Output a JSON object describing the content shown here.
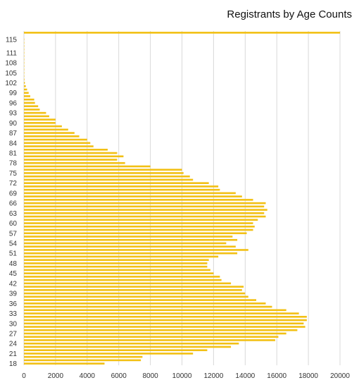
{
  "chart_data": {
    "type": "bar",
    "orientation": "horizontal",
    "title": "Registrants by Age Counts",
    "xlabel": "",
    "ylabel": "",
    "xlim": [
      0,
      20000
    ],
    "x_ticks": [
      0,
      2000,
      4000,
      6000,
      8000,
      10000,
      12000,
      14000,
      16000,
      18000,
      20000
    ],
    "y_tick_labels": [
      "115",
      "111",
      "108",
      "105",
      "102",
      "99",
      "96",
      "93",
      "90",
      "87",
      "84",
      "81",
      "78",
      "75",
      "72",
      "69",
      "66",
      "63",
      "60",
      "57",
      "54",
      "51",
      "48",
      "45",
      "42",
      "39",
      "36",
      "33",
      "30",
      "27",
      "24",
      "21",
      "18"
    ],
    "grid": "vertical",
    "legend": "none",
    "bar_color": "#F2C014",
    "categories": [
      "18",
      "19",
      "20",
      "21",
      "22",
      "23",
      "24",
      "25",
      "26",
      "27",
      "28",
      "29",
      "30",
      "31",
      "32",
      "33",
      "34",
      "35",
      "36",
      "37",
      "38",
      "39",
      "40",
      "41",
      "42",
      "43",
      "44",
      "45",
      "46",
      "47",
      "48",
      "49",
      "50",
      "51",
      "52",
      "53",
      "54",
      "55",
      "56",
      "57",
      "58",
      "59",
      "60",
      "61",
      "62",
      "63",
      "64",
      "65",
      "66",
      "67",
      "68",
      "69",
      "70",
      "71",
      "72",
      "73",
      "74",
      "75",
      "76",
      "77",
      "78",
      "79",
      "80",
      "81",
      "82",
      "83",
      "84",
      "85",
      "86",
      "87",
      "88",
      "89",
      "90",
      "91",
      "92",
      "93",
      "94",
      "95",
      "96",
      "97",
      "98",
      "99",
      "100",
      "101",
      "102",
      "103",
      "104",
      "105",
      "106",
      "107",
      "108",
      "109",
      "110",
      "111",
      "112",
      "113",
      "114",
      "115",
      "116",
      "117"
    ],
    "values": [
      5100,
      7400,
      7500,
      10700,
      11600,
      13100,
      13600,
      15900,
      16100,
      16600,
      17300,
      17800,
      17700,
      17900,
      17900,
      17400,
      16600,
      15700,
      15300,
      14700,
      14200,
      14000,
      13800,
      13900,
      13100,
      12500,
      12400,
      12000,
      11800,
      11600,
      11600,
      11700,
      12300,
      13500,
      14200,
      13400,
      12800,
      13500,
      13200,
      14100,
      14500,
      14600,
      14500,
      14800,
      15300,
      15200,
      15400,
      15200,
      15300,
      14500,
      13800,
      13400,
      12400,
      12300,
      11700,
      10700,
      10500,
      10100,
      10000,
      8000,
      6400,
      5900,
      6300,
      5900,
      5300,
      4400,
      4200,
      4000,
      3500,
      3200,
      2800,
      2400,
      2000,
      2000,
      1600,
      1400,
      1000,
      900,
      700,
      650,
      400,
      300,
      200,
      120,
      60,
      30,
      20,
      10,
      10,
      5,
      5,
      5,
      5,
      5,
      5,
      5,
      5,
      5,
      0,
      20000
    ]
  }
}
